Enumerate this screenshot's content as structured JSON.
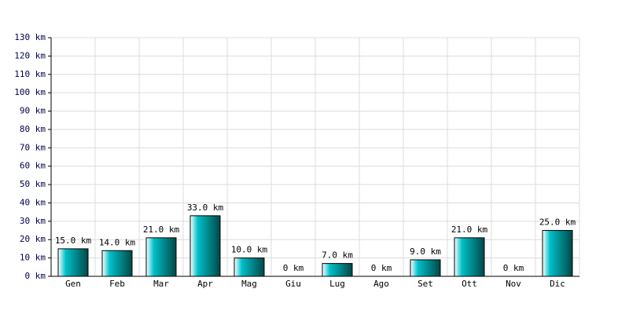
{
  "chart_data": {
    "type": "bar",
    "categories": [
      "Gen",
      "Feb",
      "Mar",
      "Apr",
      "Mag",
      "Giu",
      "Lug",
      "Ago",
      "Set",
      "Ott",
      "Nov",
      "Dic"
    ],
    "values": [
      15,
      14,
      21,
      33,
      10,
      0,
      7,
      0,
      9,
      21,
      0,
      25
    ],
    "value_labels": [
      "15.0 km",
      "14.0 km",
      "21.0 km",
      "33.0 km",
      "10.0 km",
      "0 km",
      "7.0 km",
      "0 km",
      "9.0 km",
      "21.0 km",
      "0 km",
      "25.0 km"
    ],
    "color": "#00c0c8",
    "ylim": [
      0,
      130
    ],
    "yticks": [
      {
        "value": 0,
        "label": "0 km"
      },
      {
        "value": 10,
        "label": "10 km"
      },
      {
        "value": 20,
        "label": "20 km"
      },
      {
        "value": 30,
        "label": "30 km"
      },
      {
        "value": 40,
        "label": "40 km"
      },
      {
        "value": 50,
        "label": "50 km"
      },
      {
        "value": 60,
        "label": "60 km"
      },
      {
        "value": 70,
        "label": "70 km"
      },
      {
        "value": 80,
        "label": "80 km"
      },
      {
        "value": 90,
        "label": "90 km"
      },
      {
        "value": 100,
        "label": "100 km"
      },
      {
        "value": 110,
        "label": "110 km"
      },
      {
        "value": 120,
        "label": "120 km"
      },
      {
        "value": 130,
        "label": "130 km"
      }
    ],
    "grid": true
  }
}
